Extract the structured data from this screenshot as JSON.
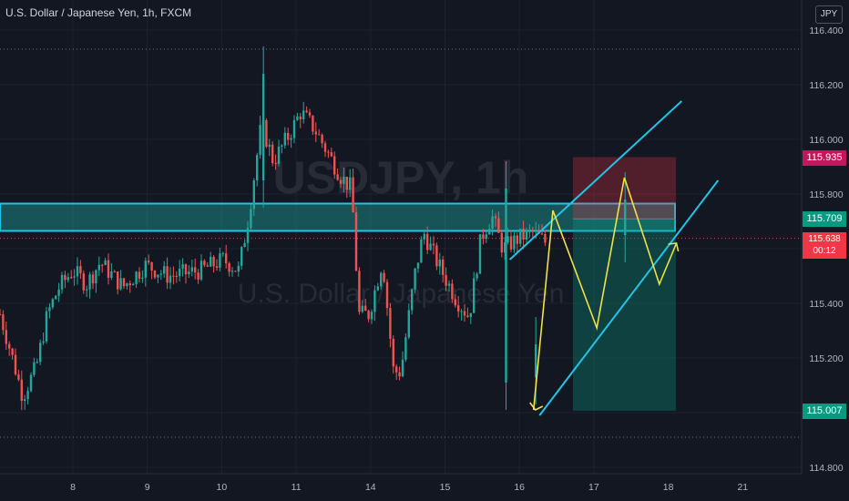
{
  "header": {
    "title": "U.S. Dollar / Japanese Yen, 1h, FXCM"
  },
  "currency_button": "JPY",
  "watermark": {
    "symbol": "USDJPY, 1h",
    "name": "U.S. Dollar / Japanese Yen"
  },
  "price_tags": {
    "stop": {
      "label": "115.935",
      "color": "#c2185b"
    },
    "entry": {
      "label": "115.709",
      "color": "#089981"
    },
    "last": {
      "label": "115.638",
      "countdown": "00:12",
      "color": "#f23645"
    },
    "target": {
      "label": "115.007",
      "color": "#089981"
    }
  },
  "chart_data": {
    "type": "candlestick",
    "title": "U.S. Dollar / Japanese Yen, 1h, FXCM",
    "y_ticks": [
      "116.400",
      "116.200",
      "116.000",
      "115.800",
      "115.600",
      "115.400",
      "115.200",
      "115.000",
      "114.800"
    ],
    "ylim": [
      114.8,
      116.4
    ],
    "x_ticks": [
      "8",
      "9",
      "10",
      "11",
      "14",
      "15",
      "16",
      "17",
      "18",
      "21"
    ],
    "colors": {
      "up": "#26a69a",
      "down": "#ef5350",
      "channel": "#22c4e6",
      "pattern": "#f2e04a",
      "zone": "#1fb8b0"
    },
    "grid": true,
    "dotted_levels": [
      116.33,
      114.91
    ],
    "current_price": 115.638,
    "zone": {
      "top": 115.765,
      "bottom": 115.665
    },
    "position": {
      "type": "short",
      "entry": 115.709,
      "stop": 115.935,
      "target": 115.007
    },
    "channel_lines": [
      {
        "from": [
          13.87,
          115.56
        ],
        "to": [
          16.18,
          116.14
        ]
      },
      {
        "from": [
          14.27,
          114.99
        ],
        "to": [
          16.67,
          115.85
        ]
      }
    ],
    "pattern_path": [
      [
        14.19,
        115.01
      ],
      [
        14.45,
        115.74
      ],
      [
        15.04,
        115.31
      ],
      [
        15.41,
        115.86
      ],
      [
        15.88,
        115.47
      ],
      [
        16.11,
        115.62
      ]
    ],
    "key_candles": [
      {
        "x": 10.56,
        "high": 116.34,
        "low": 115.75
      },
      {
        "x": 13.82,
        "high": 115.92,
        "low": 115.01
      },
      {
        "x": 14.22,
        "high": 115.35,
        "low": 115.03
      },
      {
        "x": 15.42,
        "high": 115.88,
        "low": 115.55
      }
    ]
  }
}
